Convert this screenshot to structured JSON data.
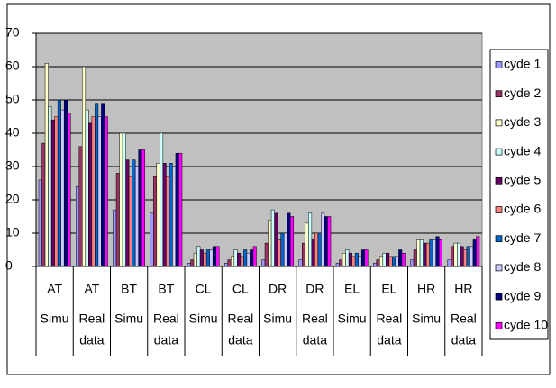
{
  "chart_data": {
    "type": "bar",
    "categories": [
      [
        "AT",
        "Simu"
      ],
      [
        "AT",
        "Real",
        "data"
      ],
      [
        "BT",
        "Simu"
      ],
      [
        "BT",
        "Real",
        "data"
      ],
      [
        "CL",
        "Simu"
      ],
      [
        "CL",
        "Real",
        "data"
      ],
      [
        "DR",
        "Simu"
      ],
      [
        "DR",
        "Real",
        "data"
      ],
      [
        "EL",
        "Simu"
      ],
      [
        "EL",
        "Real",
        "data"
      ],
      [
        "HR",
        "Simu"
      ],
      [
        "HR",
        "Real",
        "data"
      ]
    ],
    "series": [
      {
        "name": "cyde 1",
        "color": "#9999FF",
        "values": [
          26,
          24,
          17,
          16,
          1,
          1,
          2,
          2,
          1,
          1,
          2,
          2
        ]
      },
      {
        "name": "cyde 2",
        "color": "#993366",
        "values": [
          37,
          36,
          28,
          27,
          2,
          2,
          7,
          7,
          2,
          2,
          5,
          6
        ]
      },
      {
        "name": "cyde 3",
        "color": "#FFFFCC",
        "values": [
          61,
          60,
          40,
          31,
          4,
          3,
          14,
          13,
          4,
          3,
          8,
          7
        ]
      },
      {
        "name": "cyde 4",
        "color": "#CCFFFF",
        "values": [
          48,
          47,
          40,
          40,
          6,
          5,
          17,
          16,
          5,
          4,
          8,
          7
        ]
      },
      {
        "name": "cyde 5",
        "color": "#660066",
        "values": [
          44,
          43,
          32,
          31,
          5,
          4,
          16,
          8,
          4,
          4,
          7,
          6
        ]
      },
      {
        "name": "cyde 6",
        "color": "#FF8080",
        "values": [
          45,
          45,
          27,
          27,
          4,
          3,
          8,
          10,
          3,
          3,
          7,
          5
        ]
      },
      {
        "name": "cyde 7",
        "color": "#0066CC",
        "values": [
          50,
          49,
          32,
          31,
          5,
          5,
          10,
          10,
          4,
          3,
          8,
          6
        ]
      },
      {
        "name": "cyde 8",
        "color": "#CCCCFF",
        "values": [
          47,
          45,
          30,
          30,
          5,
          4,
          10,
          16,
          3,
          3,
          8,
          6
        ]
      },
      {
        "name": "cyde 9",
        "color": "#000080",
        "values": [
          50,
          49,
          35,
          34,
          6,
          5,
          16,
          15,
          5,
          5,
          9,
          8
        ]
      },
      {
        "name": "cyde 10",
        "color": "#FF00FF",
        "values": [
          46,
          45,
          35,
          34,
          6,
          6,
          15,
          15,
          5,
          4,
          8,
          9
        ]
      }
    ],
    "ylim": [
      0,
      70
    ],
    "yticks": [
      0,
      10,
      20,
      30,
      40,
      50,
      60,
      70
    ],
    "grid": true,
    "legend": "right"
  }
}
